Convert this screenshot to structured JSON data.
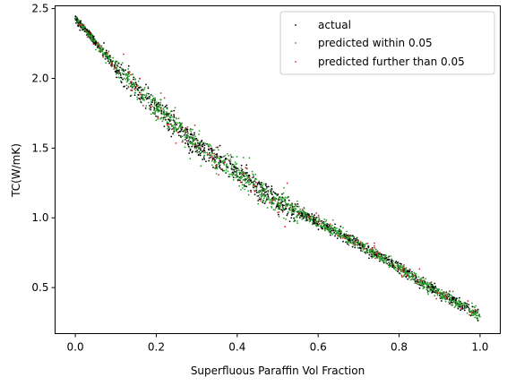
{
  "chart_data": {
    "type": "scatter",
    "title": "",
    "xlabel": "Superfluous Paraffin Vol Fraction",
    "ylabel": "TC(W/mK)",
    "xlim": [
      -0.05,
      1.05
    ],
    "ylim": [
      0.17,
      2.52
    ],
    "xticks": [
      "0.0",
      "0.2",
      "0.4",
      "0.6",
      "0.8",
      "1.0"
    ],
    "yticks": [
      "0.5",
      "1.0",
      "1.5",
      "2.0",
      "2.5"
    ],
    "grid": false,
    "legend_position": "top-right",
    "trend": {
      "x": [
        0.0,
        0.05,
        0.1,
        0.15,
        0.2,
        0.25,
        0.3,
        0.35,
        0.4,
        0.45,
        0.5,
        0.55,
        0.6,
        0.65,
        0.7,
        0.75,
        0.8,
        0.85,
        0.9,
        0.95,
        1.0
      ],
      "y": [
        2.43,
        2.26,
        2.08,
        1.93,
        1.79,
        1.66,
        1.52,
        1.42,
        1.33,
        1.22,
        1.11,
        1.04,
        0.97,
        0.89,
        0.81,
        0.73,
        0.64,
        0.55,
        0.46,
        0.38,
        0.3
      ]
    },
    "series": [
      {
        "name": "actual",
        "color": "#000000",
        "count": 1400,
        "spread": 0.018
      },
      {
        "name": "predicted within 0.05",
        "color": "#2ca02c",
        "count": 1200,
        "spread": 0.02
      },
      {
        "name": "predicted further than 0.05",
        "color": "#d62728",
        "count": 160,
        "spread": 0.03
      }
    ]
  }
}
